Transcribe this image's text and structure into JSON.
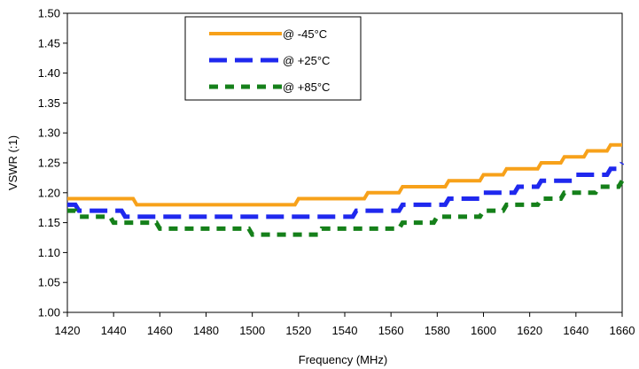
{
  "chart_data": {
    "type": "line",
    "title": "",
    "xlabel": "Frequency (MHz)",
    "ylabel": "VSWR (:1)",
    "xlim": [
      1420,
      1660
    ],
    "ylim": [
      1.0,
      1.5
    ],
    "x_ticks": [
      "1420",
      "1440",
      "1460",
      "1480",
      "1500",
      "1520",
      "1540",
      "1560",
      "1580",
      "1600",
      "1620",
      "1640",
      "1660"
    ],
    "y_ticks": [
      "1.00",
      "1.05",
      "1.10",
      "1.15",
      "1.20",
      "1.25",
      "1.30",
      "1.35",
      "1.40",
      "1.45",
      "1.50"
    ],
    "grid": false,
    "legend_position": "top-center",
    "x": [
      1420,
      1425,
      1430,
      1435,
      1440,
      1445,
      1450,
      1455,
      1460,
      1465,
      1470,
      1475,
      1480,
      1485,
      1490,
      1495,
      1500,
      1505,
      1510,
      1515,
      1520,
      1525,
      1530,
      1535,
      1540,
      1545,
      1550,
      1555,
      1560,
      1565,
      1570,
      1575,
      1580,
      1585,
      1590,
      1595,
      1600,
      1605,
      1610,
      1615,
      1620,
      1625,
      1630,
      1635,
      1640,
      1645,
      1650,
      1655,
      1660
    ],
    "series": [
      {
        "name": "@ -45°C",
        "color": "#f7a11a",
        "style": "solid",
        "values": [
          1.19,
          1.19,
          1.19,
          1.19,
          1.19,
          1.19,
          1.18,
          1.18,
          1.18,
          1.18,
          1.18,
          1.18,
          1.18,
          1.18,
          1.18,
          1.18,
          1.18,
          1.18,
          1.18,
          1.18,
          1.19,
          1.19,
          1.19,
          1.19,
          1.19,
          1.19,
          1.2,
          1.2,
          1.2,
          1.21,
          1.21,
          1.21,
          1.21,
          1.22,
          1.22,
          1.22,
          1.23,
          1.23,
          1.24,
          1.24,
          1.24,
          1.25,
          1.25,
          1.26,
          1.26,
          1.27,
          1.27,
          1.28,
          1.28
        ]
      },
      {
        "name": "@ +25°C",
        "color": "#1f28ee",
        "style": "dashed",
        "values": [
          1.18,
          1.17,
          1.17,
          1.17,
          1.17,
          1.16,
          1.16,
          1.16,
          1.16,
          1.16,
          1.16,
          1.16,
          1.16,
          1.16,
          1.16,
          1.16,
          1.16,
          1.16,
          1.16,
          1.16,
          1.16,
          1.16,
          1.16,
          1.16,
          1.16,
          1.17,
          1.17,
          1.17,
          1.17,
          1.18,
          1.18,
          1.18,
          1.18,
          1.19,
          1.19,
          1.19,
          1.2,
          1.2,
          1.2,
          1.21,
          1.21,
          1.22,
          1.22,
          1.22,
          1.23,
          1.23,
          1.23,
          1.24,
          1.25
        ]
      },
      {
        "name": "@ +85°C",
        "color": "#15801a",
        "style": "dotted",
        "values": [
          1.17,
          1.16,
          1.16,
          1.16,
          1.15,
          1.15,
          1.15,
          1.15,
          1.14,
          1.14,
          1.14,
          1.14,
          1.14,
          1.14,
          1.14,
          1.14,
          1.13,
          1.13,
          1.13,
          1.13,
          1.13,
          1.13,
          1.14,
          1.14,
          1.14,
          1.14,
          1.14,
          1.14,
          1.14,
          1.15,
          1.15,
          1.15,
          1.16,
          1.16,
          1.16,
          1.16,
          1.17,
          1.17,
          1.18,
          1.18,
          1.18,
          1.19,
          1.19,
          1.2,
          1.2,
          1.2,
          1.21,
          1.21,
          1.22
        ]
      }
    ]
  }
}
